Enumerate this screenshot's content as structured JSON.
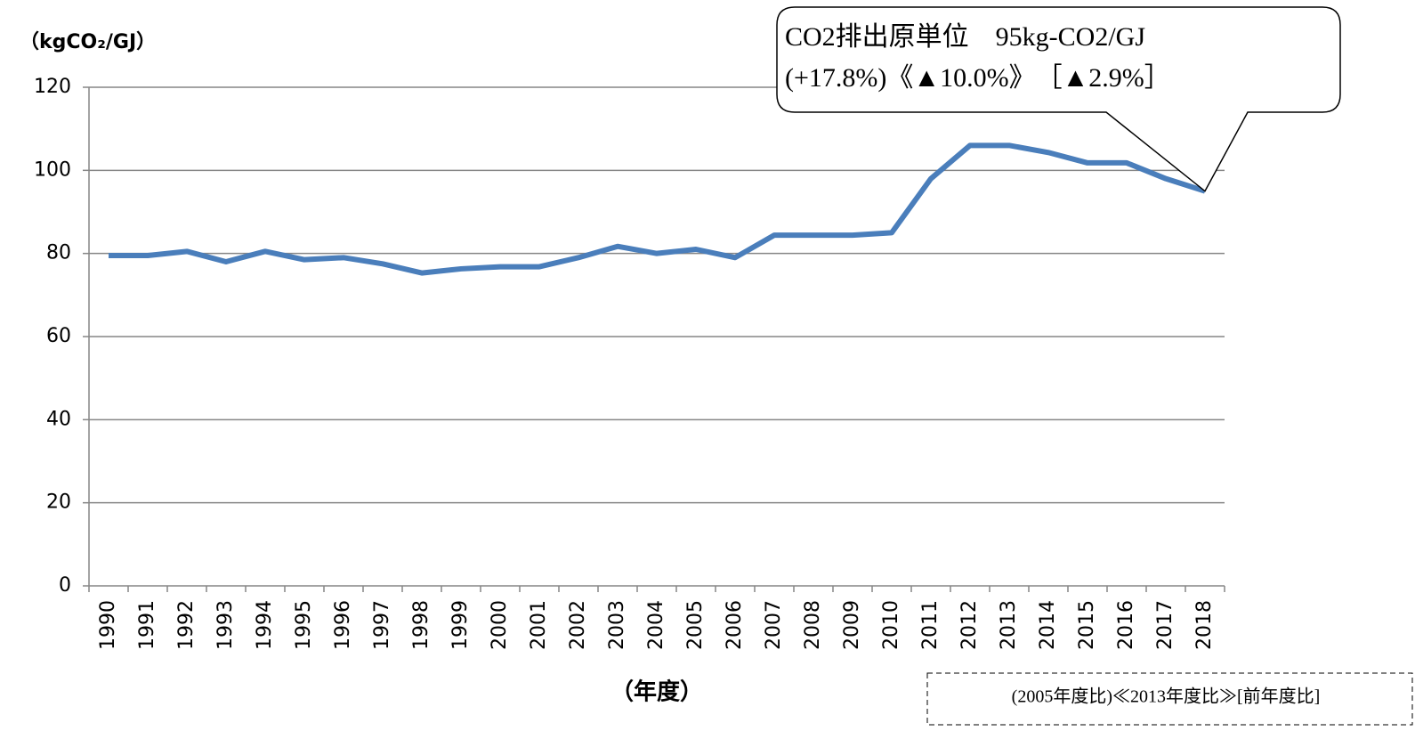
{
  "chart_data": {
    "type": "line",
    "y_axis_label": "（kgCO₂/GJ）",
    "x_axis_label": "（年度）",
    "categories": [
      "1990",
      "1991",
      "1992",
      "1993",
      "1994",
      "1995",
      "1996",
      "1997",
      "1998",
      "1999",
      "2000",
      "2001",
      "2002",
      "2003",
      "2004",
      "2005",
      "2006",
      "2007",
      "2008",
      "2009",
      "2010",
      "2011",
      "2012",
      "2013",
      "2014",
      "2015",
      "2016",
      "2017",
      "2018"
    ],
    "series": [
      {
        "color": "#4a7ebb",
        "values": [
          79.5,
          79.5,
          80.5,
          78,
          80.5,
          78.5,
          79,
          77.5,
          75.3,
          76.3,
          76.8,
          76.8,
          79,
          81.7,
          80,
          81,
          79,
          84.4,
          84.4,
          84.4,
          85,
          98,
          106,
          106,
          104.3,
          101.8,
          101.8,
          98,
          95
        ]
      }
    ],
    "ylim": [
      0,
      120
    ],
    "yticks": [
      0,
      20,
      40,
      60,
      80,
      100,
      120
    ],
    "grid": true,
    "annotation": [
      "CO2排出原単位　95kg-CO2/GJ",
      "(+17.8%)《▲10.0%》　［▲2.9%］"
    ],
    "footnote": "(2005年度比)≪2013年度比≫[前年度比]"
  }
}
